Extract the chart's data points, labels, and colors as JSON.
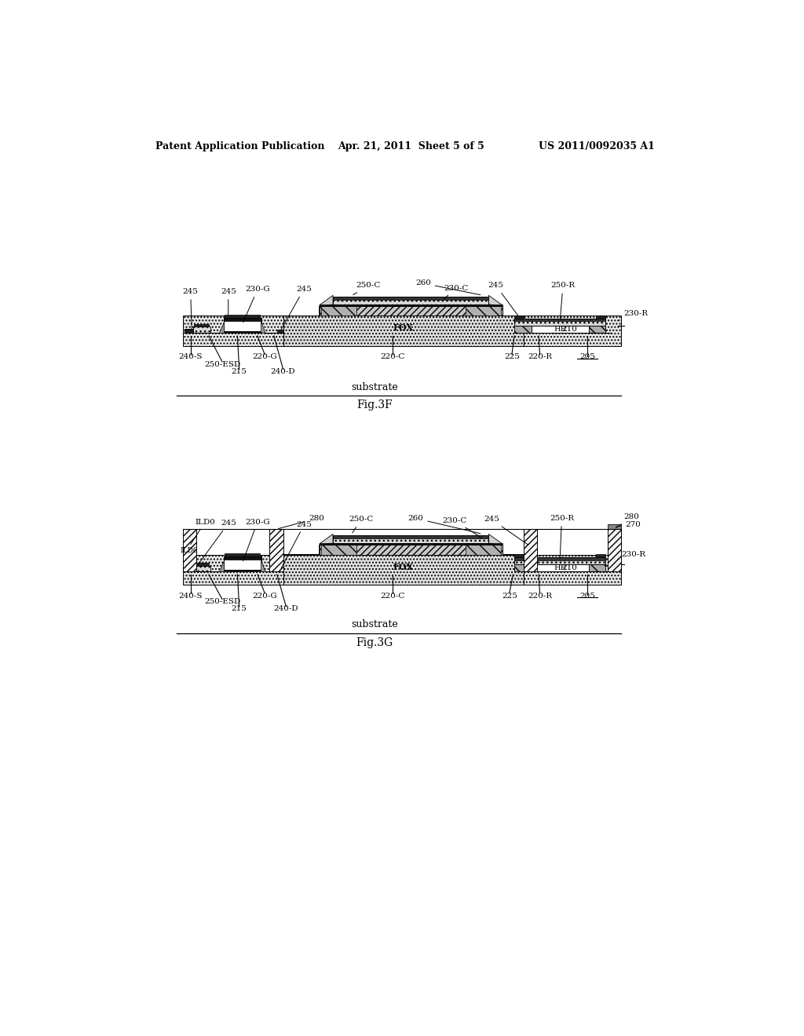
{
  "bg_color": "#ffffff",
  "header_left": "Patent Application Publication",
  "header_mid": "Apr. 21, 2011  Sheet 5 of 5",
  "header_right": "US 2011/0092035 A1",
  "fig3f_label": "Fig.3F",
  "fig3g_label": "Fig.3G",
  "substrate_label": "substrate"
}
